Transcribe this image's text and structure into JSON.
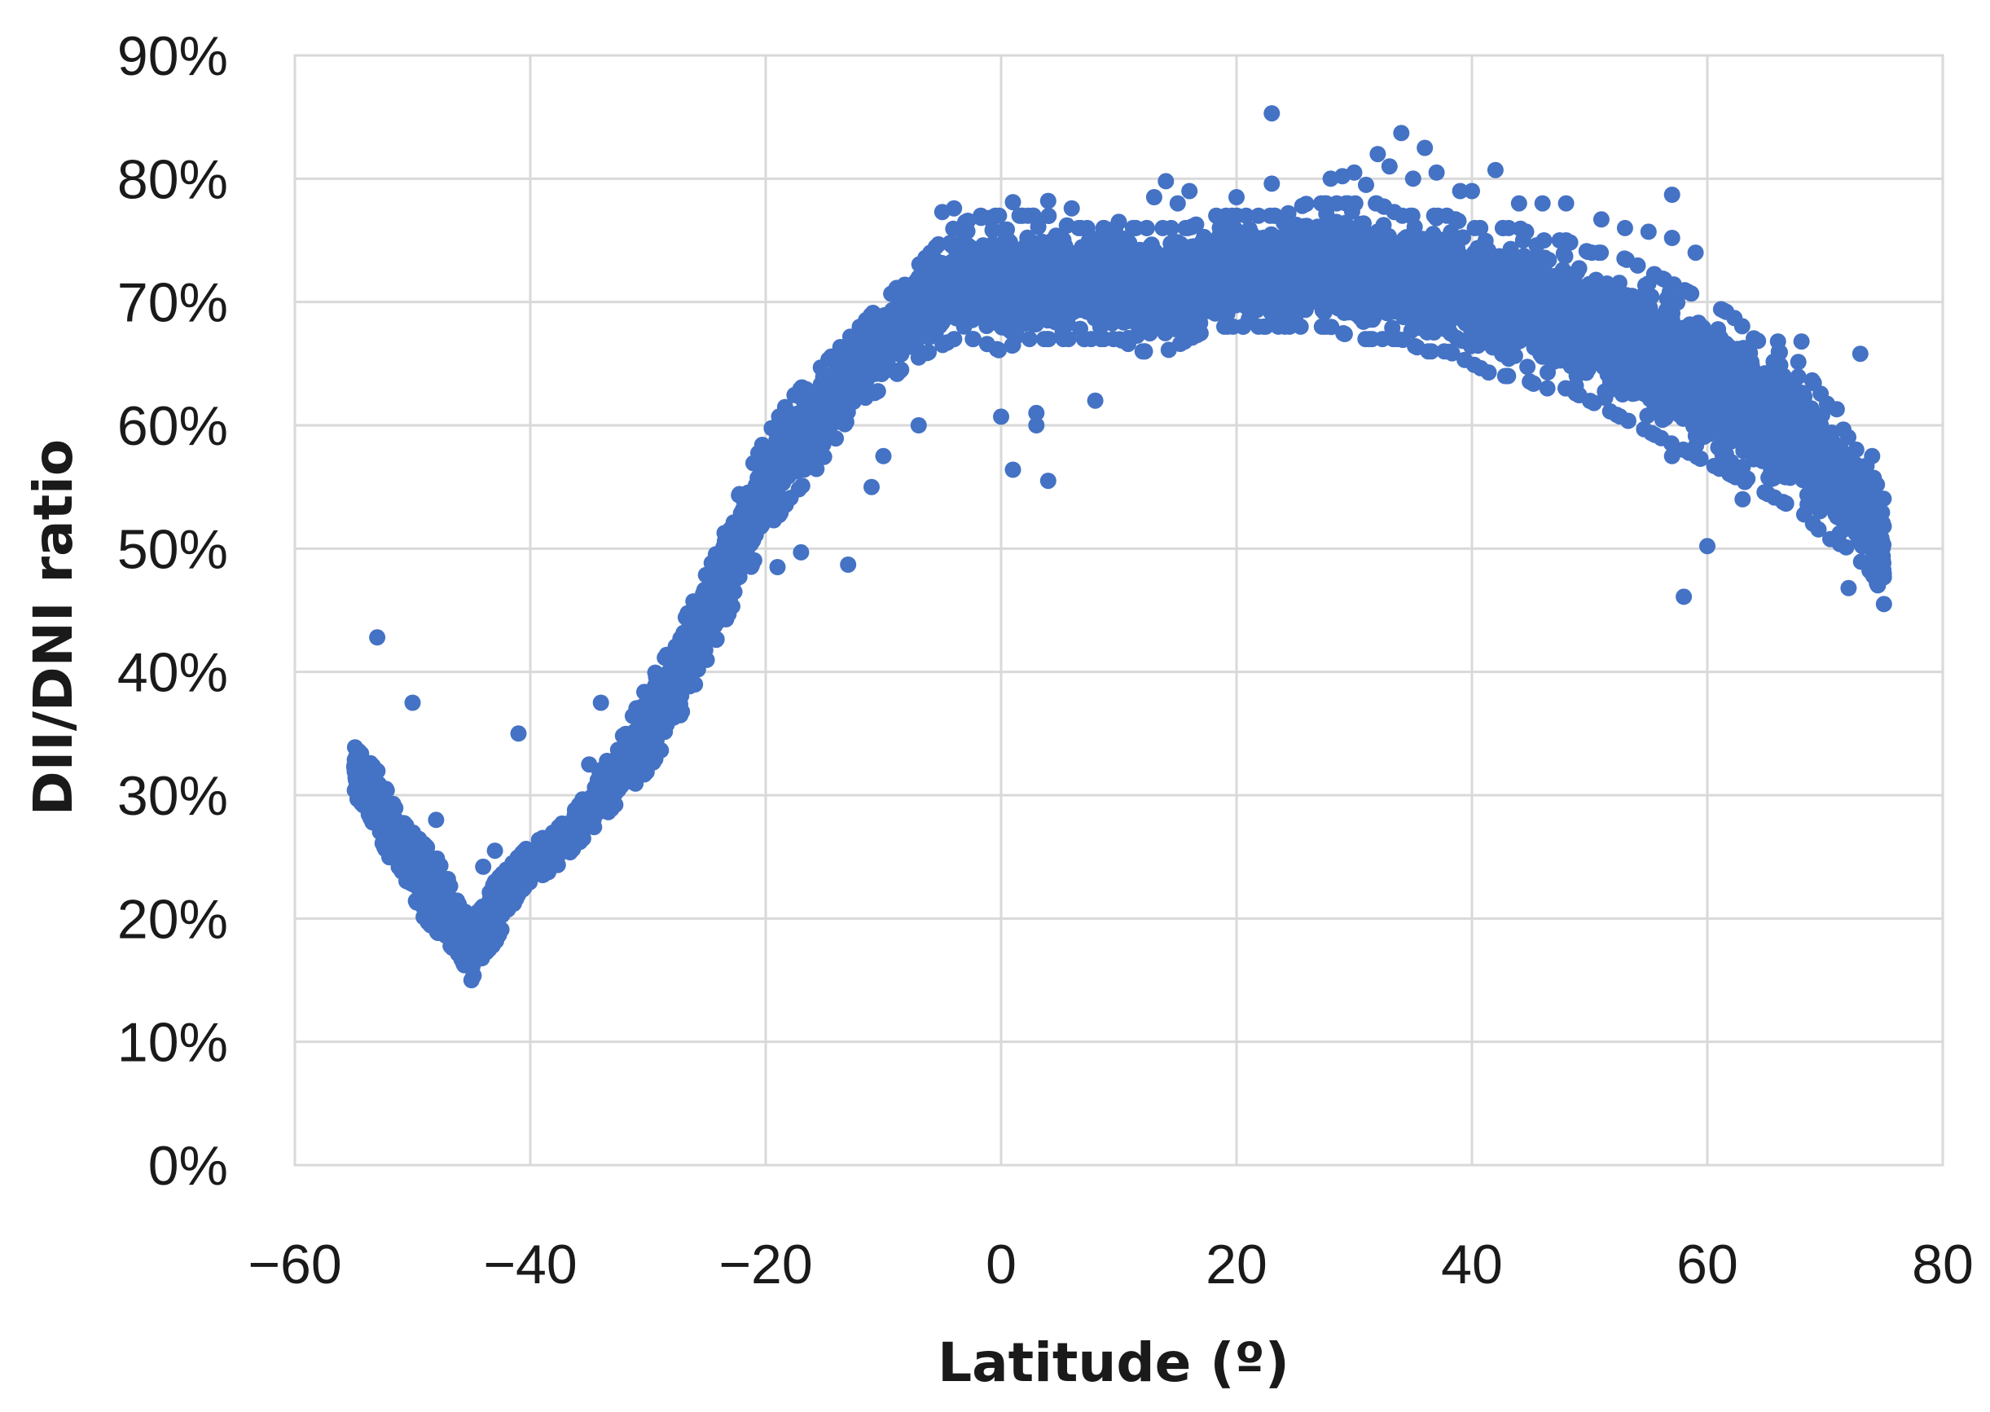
{
  "chart_data": {
    "type": "scatter",
    "title": "",
    "xlabel": "Latitude (º)",
    "ylabel": "DII/DNI ratio",
    "xlim": [
      -60,
      80
    ],
    "ylim": [
      0,
      90
    ],
    "x_ticks": [
      -60,
      -40,
      -20,
      0,
      20,
      40,
      60,
      80
    ],
    "x_tick_labels": [
      "-60",
      "-40",
      "-20",
      "0",
      "20",
      "40",
      "60",
      "80"
    ],
    "y_ticks": [
      0,
      10,
      20,
      30,
      40,
      50,
      60,
      70,
      80,
      90
    ],
    "y_tick_labels": [
      "0%",
      "10%",
      "20%",
      "30%",
      "40%",
      "50%",
      "60%",
      "70%",
      "80%",
      "90%"
    ],
    "grid": true,
    "legend": "none",
    "marker_color": "#4472C4",
    "series": [
      {
        "band": [
          [
            -55,
            30,
            34
          ],
          [
            -54,
            29,
            33
          ],
          [
            -53,
            27,
            32
          ],
          [
            -52,
            25,
            30
          ],
          [
            -51,
            24,
            28
          ],
          [
            -50,
            22,
            27
          ],
          [
            -49,
            20,
            26
          ],
          [
            -48,
            19,
            25
          ],
          [
            -47,
            18,
            23
          ],
          [
            -46,
            17,
            21
          ],
          [
            -45,
            15,
            20
          ],
          [
            -44,
            17,
            21
          ],
          [
            -43,
            18,
            23
          ],
          [
            -42,
            20,
            24
          ],
          [
            -41,
            22,
            25
          ],
          [
            -40,
            23,
            26
          ],
          [
            -38,
            24,
            27
          ],
          [
            -36,
            26,
            29
          ],
          [
            -34,
            28,
            32
          ],
          [
            -32,
            30,
            35
          ],
          [
            -30,
            32,
            39
          ],
          [
            -28,
            35,
            42
          ],
          [
            -26,
            39,
            46
          ],
          [
            -24,
            43,
            50
          ],
          [
            -22,
            47,
            55
          ],
          [
            -20,
            51,
            59
          ],
          [
            -18,
            54,
            62
          ],
          [
            -16,
            56,
            64
          ],
          [
            -14,
            59,
            66
          ],
          [
            -12,
            62,
            68
          ],
          [
            -10,
            63,
            70
          ],
          [
            -8,
            65,
            72
          ],
          [
            -6,
            66,
            74
          ],
          [
            -4,
            67,
            76
          ],
          [
            -2,
            67,
            77
          ],
          [
            0,
            66,
            77
          ],
          [
            2,
            67,
            77
          ],
          [
            4,
            67,
            77
          ],
          [
            6,
            67,
            76
          ],
          [
            8,
            67,
            76
          ],
          [
            10,
            67,
            76
          ],
          [
            12,
            66,
            76
          ],
          [
            14,
            66,
            76
          ],
          [
            16,
            67,
            76
          ],
          [
            18,
            68,
            77
          ],
          [
            20,
            68,
            77
          ],
          [
            22,
            68,
            77
          ],
          [
            24,
            68,
            77
          ],
          [
            26,
            68,
            78
          ],
          [
            28,
            68,
            78
          ],
          [
            30,
            67,
            78
          ],
          [
            32,
            67,
            78
          ],
          [
            34,
            67,
            77
          ],
          [
            36,
            66,
            77
          ],
          [
            38,
            66,
            77
          ],
          [
            40,
            65,
            76
          ],
          [
            42,
            64,
            76
          ],
          [
            44,
            64,
            76
          ],
          [
            46,
            63,
            75
          ],
          [
            48,
            63,
            75
          ],
          [
            50,
            62,
            74
          ],
          [
            52,
            61,
            74
          ],
          [
            54,
            60,
            73
          ],
          [
            56,
            59,
            72
          ],
          [
            58,
            58,
            71
          ],
          [
            60,
            57,
            70
          ],
          [
            62,
            56,
            69
          ],
          [
            64,
            55,
            67
          ],
          [
            66,
            54,
            66
          ],
          [
            68,
            53,
            65
          ],
          [
            70,
            51,
            62
          ],
          [
            72,
            50,
            59
          ],
          [
            74,
            48,
            56
          ],
          [
            75,
            46,
            54
          ]
        ],
        "outliers": [
          [
            -53,
            42.8
          ],
          [
            -50,
            37.5
          ],
          [
            -48,
            28
          ],
          [
            -47,
            23.2
          ],
          [
            -45,
            15
          ],
          [
            -44,
            24.2
          ],
          [
            -43,
            25.5
          ],
          [
            -41,
            35
          ],
          [
            -34,
            37.5
          ],
          [
            -35,
            32.5
          ],
          [
            -19,
            48.5
          ],
          [
            -17,
            49.7
          ],
          [
            -13,
            48.7
          ],
          [
            -11,
            55
          ],
          [
            -10,
            57.5
          ],
          [
            -7,
            60
          ],
          [
            0,
            60.7
          ],
          [
            1,
            56.4
          ],
          [
            3,
            61
          ],
          [
            3,
            60
          ],
          [
            4,
            55.5
          ],
          [
            8,
            62
          ],
          [
            -7,
            72
          ],
          [
            -5,
            77.3
          ],
          [
            -4,
            77.6
          ],
          [
            1,
            78.1
          ],
          [
            4,
            78.2
          ],
          [
            6,
            77.6
          ],
          [
            10,
            76.5
          ],
          [
            13,
            78.5
          ],
          [
            14,
            79.8
          ],
          [
            15,
            78
          ],
          [
            16,
            79
          ],
          [
            20,
            78.5
          ],
          [
            23,
            79.6
          ],
          [
            23,
            85.3
          ],
          [
            28,
            80
          ],
          [
            29,
            80.2
          ],
          [
            30,
            80.5
          ],
          [
            31,
            79.5
          ],
          [
            32,
            82
          ],
          [
            33,
            81
          ],
          [
            34,
            83.7
          ],
          [
            35,
            80
          ],
          [
            36,
            82.5
          ],
          [
            37,
            80.5
          ],
          [
            39,
            79
          ],
          [
            40,
            79
          ],
          [
            42,
            80.7
          ],
          [
            44,
            78
          ],
          [
            46,
            78
          ],
          [
            48,
            78
          ],
          [
            51,
            76.7
          ],
          [
            53,
            76
          ],
          [
            55,
            75.7
          ],
          [
            57,
            78.7
          ],
          [
            57,
            75.2
          ],
          [
            59,
            74
          ],
          [
            58,
            46.1
          ],
          [
            60,
            50.2
          ],
          [
            57,
            57.5
          ],
          [
            63,
            54
          ],
          [
            66,
            66.8
          ],
          [
            68,
            66.8
          ],
          [
            71,
            61.3
          ],
          [
            72,
            46.8
          ],
          [
            73,
            65.8
          ],
          [
            74,
            57.5
          ],
          [
            75,
            45.5
          ]
        ]
      }
    ]
  }
}
